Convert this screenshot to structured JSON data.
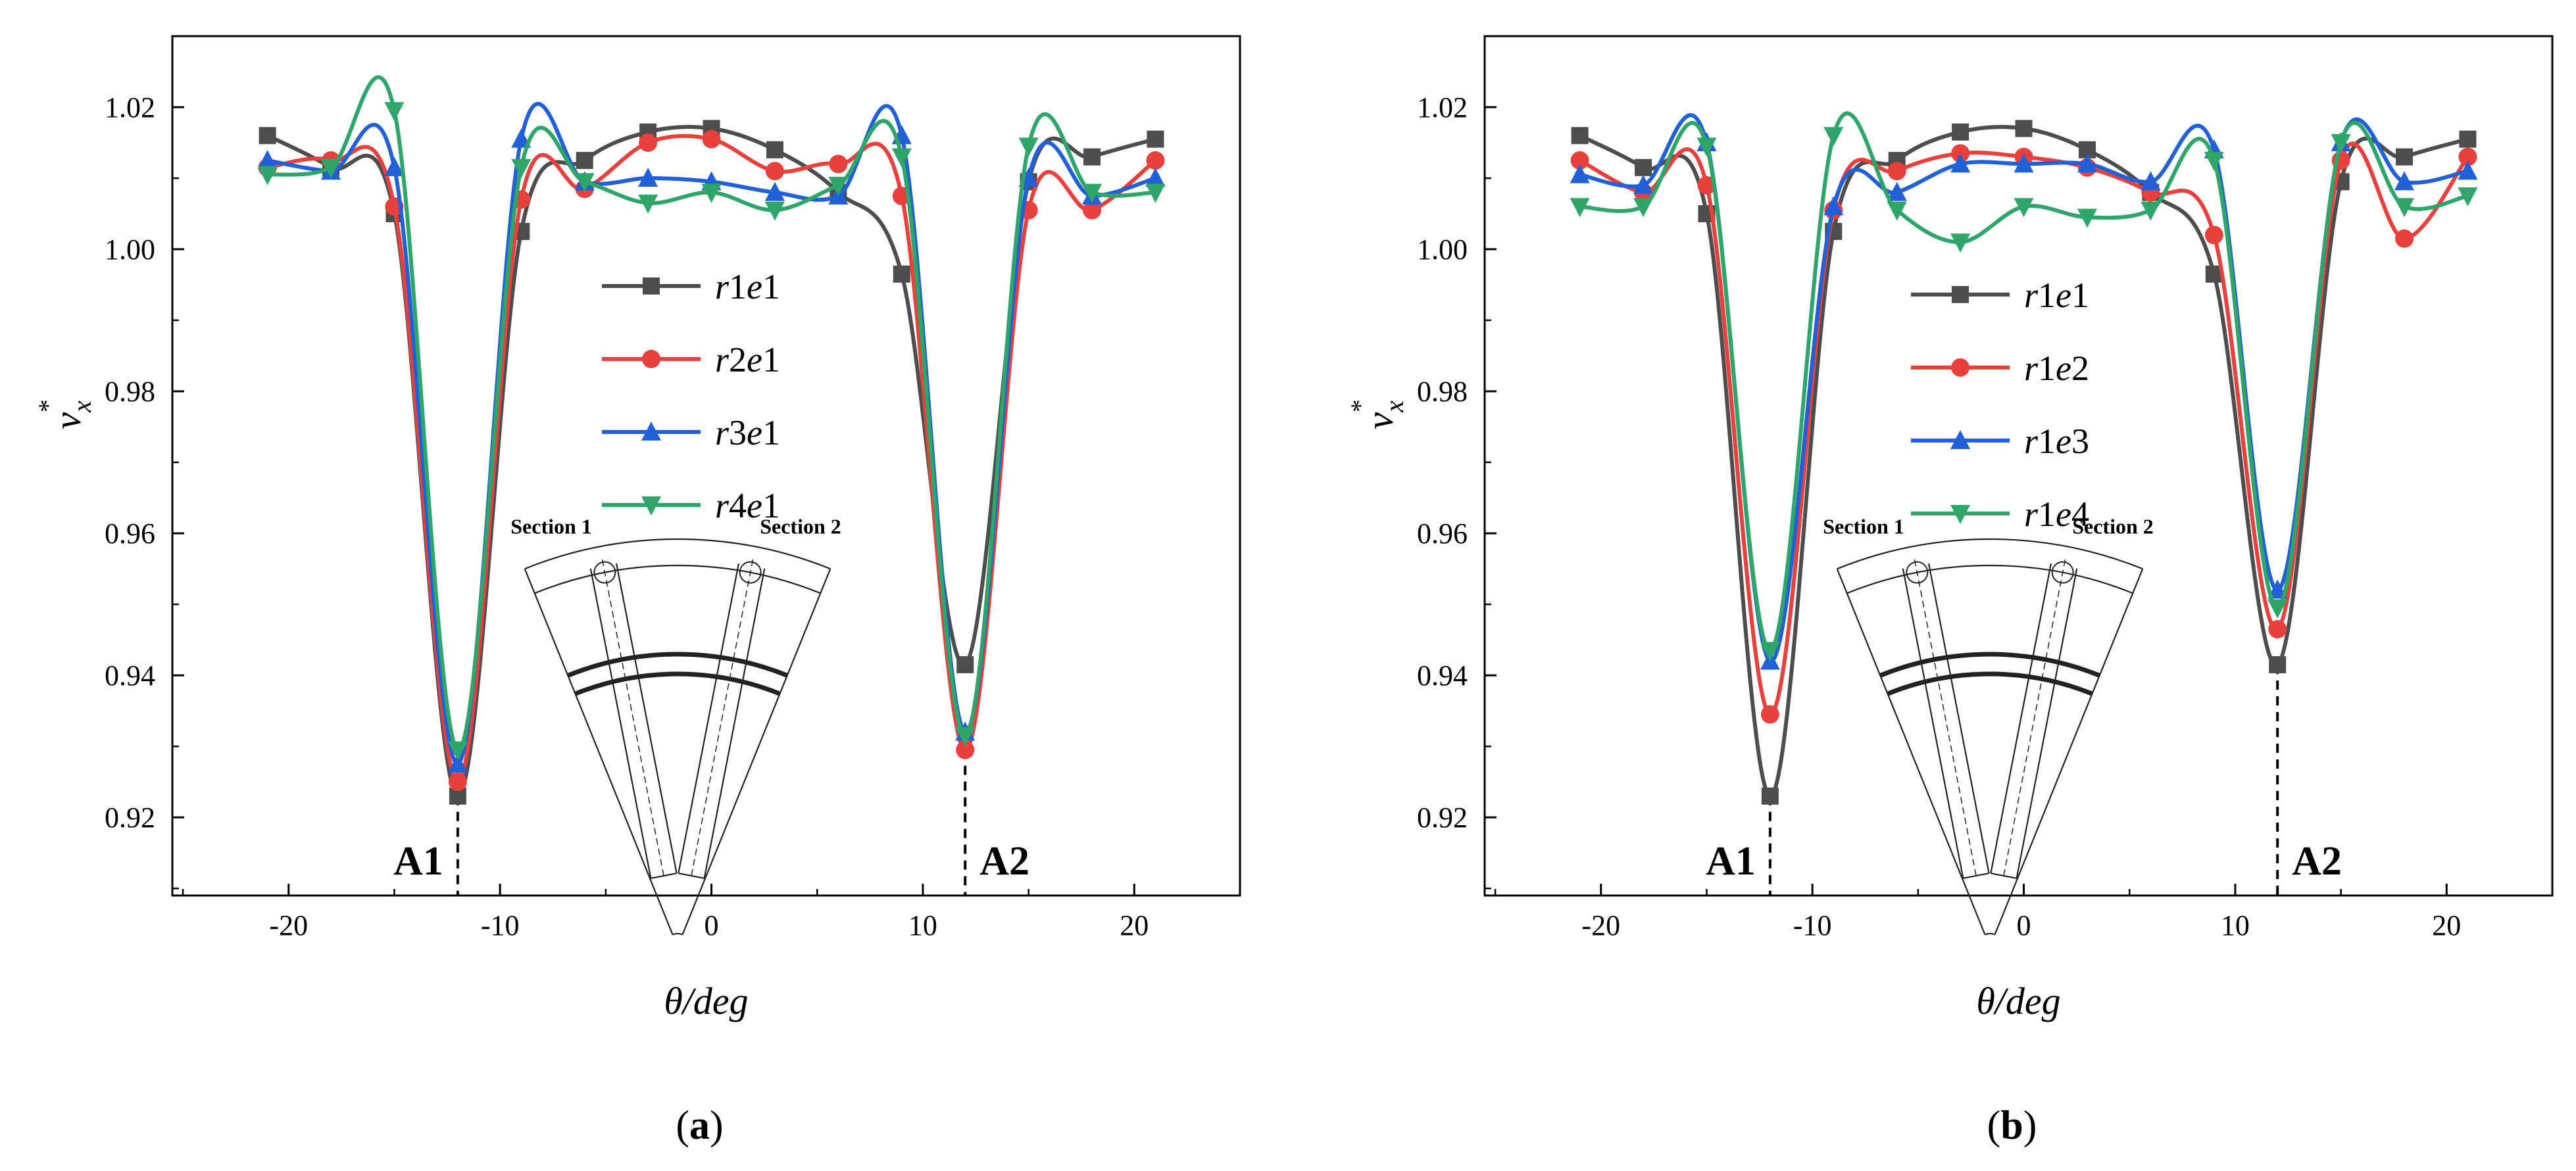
{
  "chart_data": [
    {
      "type": "line",
      "panel_label": "a",
      "xlabel": "θ/deg",
      "ylabel_main": "v",
      "ylabel_sub": "x",
      "ylabel_sup": "*",
      "xlim": [
        -25.5,
        25
      ],
      "ylim": [
        0.909,
        1.03
      ],
      "xticks": [
        -20,
        -10,
        0,
        10,
        20
      ],
      "yticks": [
        0.92,
        0.94,
        0.96,
        0.98,
        1.0,
        1.02
      ],
      "ytick_labels": [
        "0.92",
        "0.94",
        "0.96",
        "0.98",
        "1.00",
        "1.02"
      ],
      "annotations": [
        {
          "text": "A1",
          "x": -12
        },
        {
          "text": "A2",
          "x": 12
        }
      ],
      "inset": {
        "section1": "Section 1",
        "section2": "Section 2"
      },
      "x": [
        -21,
        -18,
        -15,
        -12,
        -9,
        -6,
        -3,
        0,
        3,
        6,
        9,
        12,
        15,
        18,
        21
      ],
      "series": [
        {
          "name": "r1e1",
          "label_main": "r",
          "label_digit1": "1",
          "label_mid": "e",
          "label_digit2": "1",
          "marker": "square",
          "color": "#4d4d4d",
          "values": [
            1.016,
            1.0115,
            1.005,
            0.923,
            1.0025,
            1.0125,
            1.0165,
            1.017,
            1.014,
            1.008,
            0.9965,
            0.9415,
            1.0095,
            1.013,
            1.0155
          ]
        },
        {
          "name": "r2e1",
          "label_main": "r",
          "label_digit1": "2",
          "label_mid": "e",
          "label_digit2": "1",
          "marker": "circle",
          "color": "#e8403c",
          "values": [
            1.0115,
            1.0125,
            1.006,
            0.925,
            1.007,
            1.0085,
            1.015,
            1.0155,
            1.011,
            1.012,
            1.0075,
            0.9295,
            1.0055,
            1.0055,
            1.0125
          ]
        },
        {
          "name": "r3e1",
          "label_main": "r",
          "label_digit1": "3",
          "label_mid": "e",
          "label_digit2": "1",
          "marker": "triangle-up",
          "color": "#2160d6",
          "values": [
            1.0125,
            1.011,
            1.0115,
            0.9275,
            1.0155,
            1.0095,
            1.01,
            1.0095,
            1.008,
            1.0075,
            1.016,
            0.932,
            1.01,
            1.0075,
            1.01
          ]
        },
        {
          "name": "r4e1",
          "label_main": "r",
          "label_digit1": "4",
          "label_mid": "e",
          "label_digit2": "1",
          "marker": "triangle-down",
          "color": "#2ea66a",
          "values": [
            1.0105,
            1.0115,
            1.0195,
            0.9295,
            1.0115,
            1.0095,
            1.0065,
            1.008,
            1.0055,
            1.009,
            1.013,
            0.9315,
            1.0145,
            1.008,
            1.008
          ]
        }
      ]
    },
    {
      "type": "line",
      "panel_label": "b",
      "xlabel": "θ/deg",
      "ylabel_main": "v",
      "ylabel_sub": "x",
      "ylabel_sup": "*",
      "xlim": [
        -25.5,
        25
      ],
      "ylim": [
        0.909,
        1.03
      ],
      "xticks": [
        -20,
        -10,
        0,
        10,
        20
      ],
      "yticks": [
        0.92,
        0.94,
        0.96,
        0.98,
        1.0,
        1.02
      ],
      "ytick_labels": [
        "0.92",
        "0.94",
        "0.96",
        "0.98",
        "1.00",
        "1.02"
      ],
      "annotations": [
        {
          "text": "A1",
          "x": -12
        },
        {
          "text": "A2",
          "x": 12
        }
      ],
      "inset": {
        "section1": "Section 1",
        "section2": "Section 2"
      },
      "x": [
        -21,
        -18,
        -15,
        -12,
        -9,
        -6,
        -3,
        0,
        3,
        6,
        9,
        12,
        15,
        18,
        21
      ],
      "series": [
        {
          "name": "r1e1",
          "label_main": "r",
          "label_digit1": "1",
          "label_mid": "e",
          "label_digit2": "1",
          "marker": "square",
          "color": "#4d4d4d",
          "values": [
            1.016,
            1.0115,
            1.005,
            0.923,
            1.0025,
            1.0125,
            1.0165,
            1.017,
            1.014,
            1.008,
            0.9965,
            0.9415,
            1.0095,
            1.013,
            1.0155
          ]
        },
        {
          "name": "r1e2",
          "label_main": "r",
          "label_digit1": "1",
          "label_mid": "e",
          "label_digit2": "2",
          "marker": "circle",
          "color": "#e8403c",
          "values": [
            1.0125,
            1.008,
            1.009,
            0.9345,
            1.0055,
            1.011,
            1.0135,
            1.013,
            1.0115,
            1.008,
            1.002,
            0.9465,
            1.0125,
            1.0015,
            1.013
          ]
        },
        {
          "name": "r1e3",
          "label_main": "r",
          "label_digit1": "1",
          "label_mid": "e",
          "label_digit2": "3",
          "marker": "triangle-up",
          "color": "#2160d6",
          "values": [
            1.0105,
            1.009,
            1.015,
            0.942,
            1.006,
            1.008,
            1.012,
            1.012,
            1.012,
            1.0095,
            1.014,
            0.952,
            1.015,
            1.0095,
            1.011
          ]
        },
        {
          "name": "r1e4",
          "label_main": "r",
          "label_digit1": "1",
          "label_mid": "e",
          "label_digit2": "4",
          "marker": "triangle-down",
          "color": "#2ea66a",
          "values": [
            1.006,
            1.006,
            1.0145,
            0.9435,
            1.016,
            1.0055,
            1.001,
            1.006,
            1.0045,
            1.0055,
            1.0125,
            0.9495,
            1.015,
            1.006,
            1.0075
          ]
        }
      ]
    }
  ]
}
